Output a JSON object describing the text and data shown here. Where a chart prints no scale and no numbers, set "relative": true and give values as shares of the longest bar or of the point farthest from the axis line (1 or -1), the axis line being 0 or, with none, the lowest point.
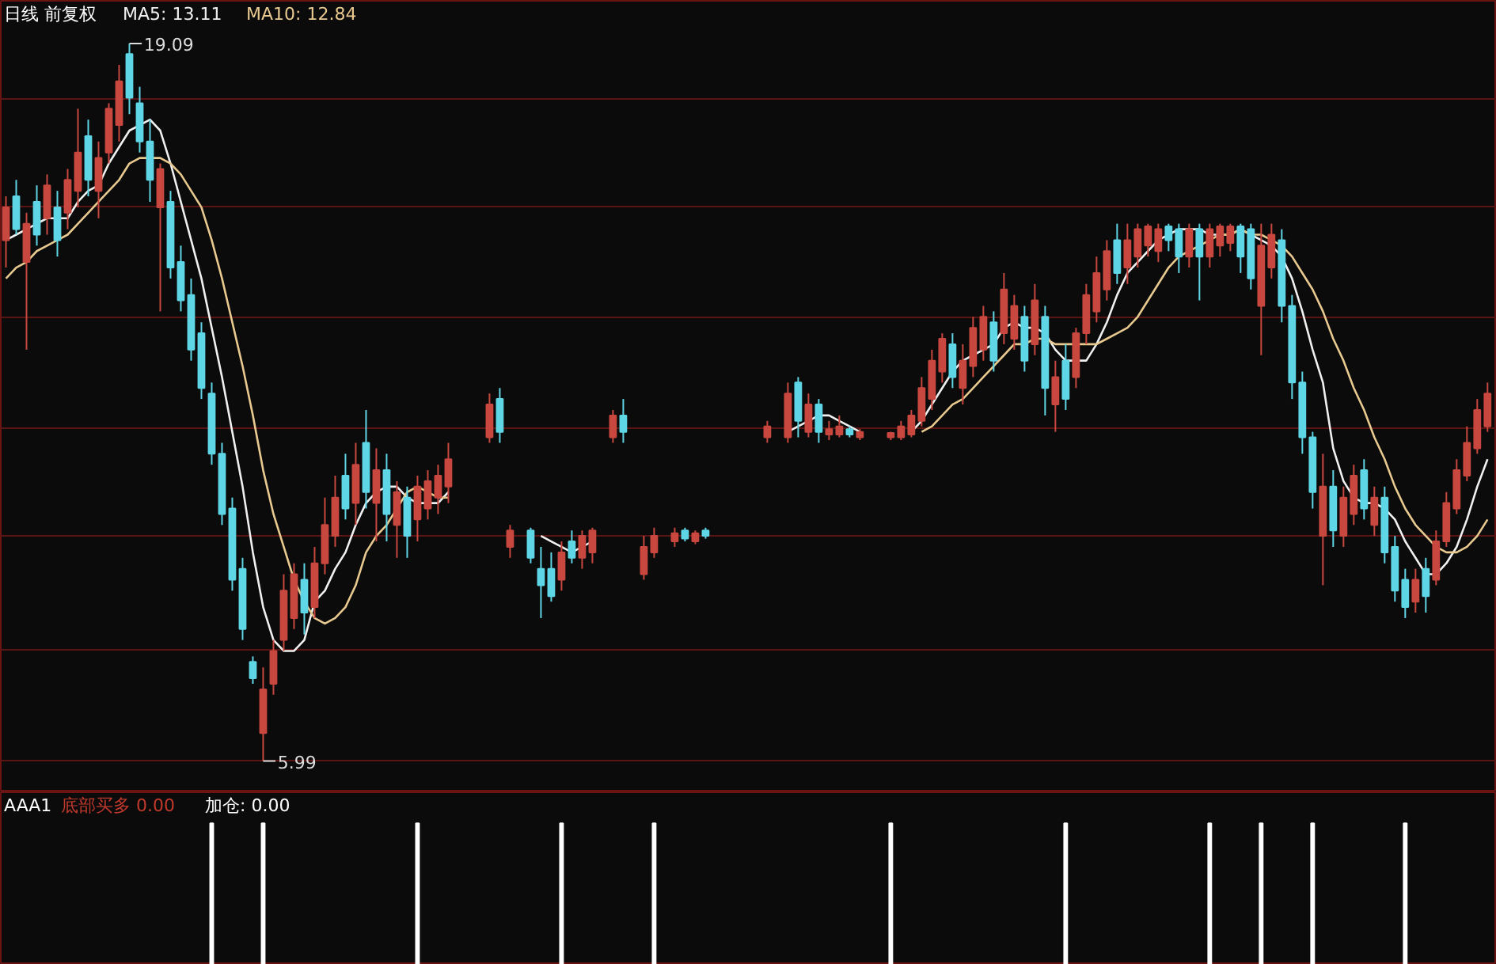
{
  "chart_data": [
    {
      "type": "candlestick",
      "title": "日线 前复权",
      "categories": [
        null,
        null,
        null,
        null,
        null,
        null,
        null,
        null,
        null,
        null,
        null,
        null,
        null,
        null,
        null,
        null,
        null,
        null,
        null,
        null,
        null,
        null,
        null,
        null,
        null,
        null,
        null,
        null,
        null,
        null,
        null,
        null,
        null,
        null,
        null,
        null,
        null,
        null,
        null,
        null,
        null,
        null,
        null,
        null,
        null,
        null,
        null,
        null,
        null,
        null,
        null,
        null,
        null,
        null,
        null,
        null,
        null,
        null,
        null,
        null,
        null,
        null,
        null,
        null,
        null,
        null,
        null,
        null,
        null,
        null,
        null,
        null,
        null,
        null,
        null,
        null,
        null,
        null,
        null,
        null,
        null,
        null,
        null,
        null,
        null,
        null,
        null,
        null,
        null,
        null,
        null,
        null,
        null,
        null,
        null,
        null,
        null,
        null,
        null,
        null,
        null,
        null,
        null,
        null,
        null,
        null,
        null,
        null,
        null,
        null,
        null,
        null,
        null,
        null,
        null,
        null,
        null,
        null,
        null,
        null,
        null,
        null,
        null,
        null,
        null,
        null,
        null,
        null,
        null,
        null,
        null,
        null,
        null,
        null,
        null,
        null,
        null,
        null,
        null,
        null,
        null,
        null,
        null,
        null,
        null
      ],
      "ohlc": [
        [
          15.5,
          16.3,
          15.0,
          16.1
        ],
        [
          16.3,
          16.6,
          15.6,
          15.7
        ],
        [
          15.1,
          16.0,
          13.5,
          15.8
        ],
        [
          16.2,
          16.5,
          15.4,
          15.6
        ],
        [
          15.9,
          16.7,
          15.6,
          16.5
        ],
        [
          16.1,
          16.4,
          15.2,
          15.5
        ],
        [
          16.0,
          16.8,
          15.7,
          16.6
        ],
        [
          16.4,
          17.9,
          16.1,
          17.1
        ],
        [
          17.4,
          17.7,
          16.3,
          16.6
        ],
        [
          16.4,
          17.3,
          15.9,
          17.0
        ],
        [
          17.1,
          18.0,
          16.9,
          17.9
        ],
        [
          17.6,
          18.7,
          17.3,
          18.4
        ],
        [
          18.9,
          19.09,
          17.8,
          18.1
        ],
        [
          18.0,
          18.3,
          17.1,
          17.3
        ],
        [
          17.3,
          17.7,
          16.2,
          16.6
        ],
        [
          16.1,
          16.9,
          14.2,
          16.8
        ],
        [
          16.2,
          16.4,
          14.8,
          15.0
        ],
        [
          15.1,
          15.4,
          14.2,
          14.4
        ],
        [
          14.5,
          14.8,
          13.3,
          13.5
        ],
        [
          13.8,
          14.0,
          12.6,
          12.8
        ],
        [
          12.7,
          12.9,
          11.4,
          11.6
        ],
        [
          11.6,
          11.8,
          10.3,
          10.5
        ],
        [
          10.6,
          10.8,
          9.1,
          9.3
        ],
        [
          9.5,
          9.7,
          8.2,
          8.4
        ],
        [
          7.8,
          7.9,
          7.4,
          7.5
        ],
        [
          6.5,
          7.7,
          5.99,
          7.3
        ],
        [
          7.4,
          8.2,
          7.2,
          8.0
        ],
        [
          8.2,
          9.4,
          8.0,
          9.1
        ],
        [
          8.6,
          9.6,
          8.4,
          9.4
        ],
        [
          9.3,
          9.6,
          8.3,
          8.7
        ],
        [
          8.8,
          9.9,
          8.6,
          9.6
        ],
        [
          9.6,
          10.8,
          9.4,
          10.3
        ],
        [
          10.1,
          11.2,
          9.9,
          10.8
        ],
        [
          11.2,
          11.6,
          10.4,
          10.6
        ],
        [
          10.7,
          11.8,
          10.3,
          11.4
        ],
        [
          11.8,
          12.4,
          10.6,
          10.9
        ],
        [
          10.7,
          11.7,
          10.0,
          11.3
        ],
        [
          11.3,
          11.6,
          10.0,
          10.5
        ],
        [
          10.3,
          11.1,
          9.7,
          10.9
        ],
        [
          10.8,
          11.0,
          9.7,
          10.1
        ],
        [
          10.4,
          11.2,
          10.0,
          11.0
        ],
        [
          10.6,
          11.3,
          10.4,
          11.1
        ],
        [
          10.8,
          11.4,
          10.5,
          11.2
        ],
        [
          11.0,
          11.8,
          10.7,
          11.5
        ],
        null,
        null,
        null,
        [
          11.9,
          12.7,
          11.8,
          12.5
        ],
        [
          12.6,
          12.8,
          11.8,
          12.0
        ],
        [
          9.9,
          10.3,
          9.7,
          10.2
        ],
        null,
        [
          10.2,
          10.25,
          9.6,
          9.7
        ],
        [
          9.5,
          9.9,
          8.6,
          9.2
        ],
        [
          9.5,
          9.8,
          8.9,
          9.0
        ],
        [
          9.3,
          10.0,
          9.1,
          9.8
        ],
        [
          10.0,
          10.2,
          9.6,
          9.7
        ],
        [
          9.7,
          10.2,
          9.5,
          10.1
        ],
        [
          9.8,
          10.25,
          9.6,
          10.2
        ],
        null,
        [
          11.9,
          12.4,
          11.8,
          12.3
        ],
        [
          12.3,
          12.6,
          11.8,
          12.0
        ],
        null,
        [
          9.4,
          10.1,
          9.3,
          9.9
        ],
        [
          9.8,
          10.25,
          9.7,
          10.1
        ],
        null,
        [
          10.0,
          10.25,
          9.9,
          10.15
        ],
        [
          10.2,
          10.25,
          10.0,
          10.05
        ],
        [
          10.0,
          10.2,
          9.95,
          10.15
        ],
        [
          10.2,
          10.25,
          10.05,
          10.1
        ],
        null,
        null,
        null,
        null,
        null,
        [
          11.9,
          12.2,
          11.8,
          12.1
        ],
        null,
        [
          11.9,
          12.9,
          11.8,
          12.7
        ],
        [
          12.9,
          13.0,
          11.9,
          12.2
        ],
        [
          12.0,
          12.7,
          11.9,
          12.5
        ],
        [
          12.5,
          12.6,
          11.8,
          12.0
        ],
        [
          11.95,
          12.2,
          11.85,
          12.05
        ],
        [
          11.95,
          12.3,
          11.9,
          12.1
        ],
        [
          12.05,
          12.1,
          11.9,
          11.95
        ],
        [
          11.9,
          12.05,
          11.85,
          12.0
        ],
        null,
        null,
        [
          11.9,
          12.0,
          11.85,
          11.98
        ],
        [
          11.9,
          12.2,
          11.85,
          12.1
        ],
        [
          11.95,
          12.4,
          11.9,
          12.3
        ],
        [
          12.2,
          13.0,
          12.1,
          12.8
        ],
        [
          12.6,
          13.5,
          12.4,
          13.3
        ],
        [
          13.1,
          13.8,
          12.9,
          13.7
        ],
        [
          13.6,
          13.8,
          12.8,
          13.0
        ],
        [
          12.8,
          13.6,
          12.5,
          13.3
        ],
        [
          13.2,
          14.1,
          13.0,
          13.9
        ],
        [
          13.5,
          14.3,
          13.3,
          14.1
        ],
        [
          14.0,
          14.2,
          13.1,
          13.3
        ],
        [
          13.8,
          14.9,
          13.6,
          14.6
        ],
        [
          13.7,
          14.5,
          13.5,
          14.3
        ],
        [
          14.1,
          14.3,
          13.1,
          13.3
        ],
        [
          13.6,
          14.7,
          13.4,
          14.4
        ],
        [
          14.1,
          14.3,
          12.3,
          12.8
        ],
        [
          12.5,
          13.3,
          12.0,
          13.0
        ],
        [
          13.3,
          13.6,
          12.4,
          12.6
        ],
        [
          13.0,
          13.9,
          12.8,
          13.8
        ],
        [
          13.8,
          14.7,
          13.6,
          14.5
        ],
        [
          14.2,
          15.2,
          14.0,
          14.9
        ],
        [
          14.6,
          15.5,
          14.4,
          15.3
        ],
        [
          15.5,
          15.8,
          14.7,
          14.9
        ],
        [
          15.0,
          15.8,
          14.7,
          15.5
        ],
        [
          15.2,
          15.8,
          15.0,
          15.7
        ],
        [
          15.4,
          15.8,
          15.2,
          15.75
        ],
        [
          15.3,
          15.8,
          15.1,
          15.7
        ],
        [
          15.75,
          15.8,
          15.3,
          15.5
        ],
        [
          15.7,
          15.8,
          14.9,
          15.2
        ],
        [
          15.2,
          15.8,
          15.0,
          15.7
        ],
        [
          15.7,
          15.8,
          14.4,
          15.2
        ],
        [
          15.2,
          15.8,
          15.0,
          15.7
        ],
        [
          15.4,
          15.8,
          15.2,
          15.75
        ],
        [
          15.45,
          15.8,
          15.3,
          15.75
        ],
        [
          15.75,
          15.8,
          14.9,
          15.2
        ],
        [
          15.7,
          15.8,
          14.6,
          14.8
        ],
        [
          14.3,
          15.8,
          13.4,
          15.4
        ],
        [
          15.0,
          15.8,
          14.8,
          15.6
        ],
        [
          15.5,
          15.7,
          14.0,
          14.3
        ],
        [
          14.3,
          14.5,
          12.6,
          12.9
        ],
        [
          12.9,
          13.1,
          11.6,
          11.9
        ],
        [
          11.9,
          12.0,
          10.6,
          10.9
        ],
        [
          10.1,
          11.6,
          9.2,
          11.0
        ],
        [
          11.0,
          11.3,
          9.9,
          10.2
        ],
        [
          10.1,
          11.0,
          9.9,
          10.8
        ],
        [
          10.5,
          11.4,
          10.3,
          11.2
        ],
        [
          11.3,
          11.5,
          10.4,
          10.6
        ],
        [
          10.3,
          11.0,
          10.1,
          10.8
        ],
        [
          10.8,
          11.0,
          9.6,
          9.8
        ],
        [
          9.9,
          10.1,
          8.9,
          9.1
        ],
        [
          9.3,
          9.5,
          8.6,
          8.8
        ],
        [
          8.9,
          9.5,
          8.7,
          9.3
        ],
        [
          9.5,
          9.7,
          8.7,
          9.0
        ],
        [
          9.3,
          10.2,
          9.2,
          10.0
        ],
        [
          10.0,
          10.9,
          9.9,
          10.7
        ],
        [
          10.6,
          11.5,
          10.5,
          11.3
        ],
        [
          11.2,
          12.1,
          11.1,
          11.8
        ],
        [
          11.7,
          12.6,
          11.6,
          12.4
        ],
        [
          12.1,
          12.9,
          12.0,
          12.7
        ]
      ],
      "series": [
        {
          "name": "MA5: 13.11",
          "type": "line",
          "color": "#f0f0f0",
          "values": [
            15.5,
            15.6,
            15.7,
            15.8,
            15.9,
            15.9,
            15.9,
            16.2,
            16.4,
            16.5,
            16.9,
            17.2,
            17.5,
            17.6,
            17.7,
            17.5,
            16.9,
            16.2,
            15.5,
            14.8,
            13.9,
            13.0,
            12.0,
            11.0,
            9.8,
            8.8,
            8.2,
            8.0,
            8.0,
            8.2,
            8.9,
            9.1,
            9.5,
            9.8,
            10.3,
            10.7,
            10.9,
            11.0,
            11.0,
            10.8,
            10.7,
            10.7,
            10.7,
            10.9,
            null,
            null,
            null,
            null,
            null,
            null,
            null,
            null,
            10.1,
            10.0,
            9.9,
            9.8,
            9.9,
            10.0,
            null,
            null,
            null,
            null,
            null,
            null,
            null,
            null,
            null,
            null,
            null,
            null,
            null,
            null,
            null,
            null,
            null,
            null,
            12.0,
            12.1,
            12.2,
            12.3,
            12.3,
            12.2,
            12.1,
            12.0,
            null,
            null,
            null,
            null,
            12.0,
            12.2,
            12.5,
            12.8,
            13.1,
            13.3,
            13.4,
            13.5,
            13.6,
            13.9,
            14.0,
            13.9,
            13.9,
            13.8,
            13.5,
            13.3,
            13.3,
            13.3,
            13.6,
            14.0,
            14.5,
            14.9,
            15.1,
            15.3,
            15.5,
            15.6,
            15.7,
            15.7,
            15.7,
            15.6,
            15.6,
            15.6,
            15.7,
            15.6,
            15.5,
            15.4,
            15.2,
            14.8,
            14.2,
            13.5,
            12.9,
            11.7,
            11.1,
            10.8,
            10.7,
            10.7,
            10.6,
            10.4,
            10.0,
            9.7,
            9.4,
            9.4,
            9.6,
            9.9,
            10.4,
            11.0,
            11.5
          ]
        },
        {
          "name": "MA10: 12.84",
          "type": "line",
          "color": "#e8c98f",
          "values": [
            14.8,
            15.0,
            15.1,
            15.3,
            15.4,
            15.5,
            15.6,
            15.8,
            16.0,
            16.2,
            16.4,
            16.6,
            16.9,
            17.0,
            17.0,
            17.0,
            16.9,
            16.7,
            16.4,
            16.1,
            15.5,
            14.8,
            14.0,
            13.2,
            12.3,
            11.3,
            10.5,
            9.9,
            9.3,
            8.9,
            8.6,
            8.5,
            8.6,
            8.8,
            9.2,
            9.8,
            10.1,
            10.3,
            10.6,
            10.9,
            11.0,
            10.9,
            10.8,
            10.8,
            null,
            null,
            null,
            null,
            null,
            null,
            null,
            null,
            null,
            null,
            null,
            null,
            null,
            null,
            null,
            null,
            null,
            null,
            null,
            null,
            null,
            null,
            null,
            null,
            null,
            null,
            null,
            null,
            null,
            null,
            null,
            null,
            null,
            null,
            null,
            null,
            null,
            null,
            null,
            null,
            null,
            null,
            null,
            null,
            null,
            12.0,
            12.1,
            12.3,
            12.5,
            12.6,
            12.8,
            13.0,
            13.2,
            13.4,
            13.6,
            13.6,
            13.7,
            13.7,
            13.6,
            13.6,
            13.6,
            13.6,
            13.6,
            13.7,
            13.8,
            13.9,
            14.1,
            14.4,
            14.7,
            15.0,
            15.2,
            15.3,
            15.4,
            15.5,
            15.6,
            15.6,
            15.7,
            15.6,
            15.6,
            15.5,
            15.4,
            15.2,
            14.9,
            14.6,
            14.2,
            13.7,
            13.3,
            12.8,
            12.4,
            11.9,
            11.5,
            11.0,
            10.6,
            10.3,
            10.1,
            9.9,
            9.8,
            9.8,
            9.9,
            10.1,
            10.4
          ]
        }
      ],
      "annotations": [
        "19.09",
        "5.99"
      ],
      "ylim": [
        5.42,
        19.87
      ],
      "yticks": [
        {
          "value": 18.08,
          "label": null
        },
        {
          "value": 16.1,
          "label": null
        },
        {
          "value": 14.09,
          "label": null
        },
        {
          "value": 12.07,
          "label": null
        },
        {
          "value": 10.1,
          "label": null
        },
        {
          "value": 8.02,
          "label": null
        },
        {
          "value": 6.0,
          "label": null
        }
      ],
      "grid": "y",
      "legend": "top left",
      "tick_labels": false
    },
    {
      "type": "bar",
      "title": "AAA1",
      "relative": true,
      "categories": [
        null,
        null,
        null,
        null,
        null,
        null,
        null,
        null,
        null,
        null,
        null,
        null,
        null,
        null,
        null,
        null,
        null,
        null,
        null,
        null,
        null,
        null,
        null,
        null,
        null,
        null,
        null,
        null,
        null,
        null,
        null,
        null,
        null,
        null,
        null,
        null,
        null,
        null,
        null,
        null,
        null,
        null,
        null,
        null,
        null,
        null,
        null,
        null,
        null,
        null,
        null,
        null,
        null,
        null,
        null,
        null,
        null,
        null,
        null,
        null,
        null,
        null,
        null,
        null,
        null,
        null,
        null,
        null,
        null,
        null,
        null,
        null,
        null,
        null,
        null,
        null,
        null,
        null,
        null,
        null,
        null,
        null,
        null,
        null,
        null,
        null,
        null,
        null,
        null,
        null,
        null,
        null,
        null,
        null,
        null,
        null,
        null,
        null,
        null,
        null,
        null,
        null,
        null,
        null,
        null,
        null,
        null,
        null,
        null,
        null,
        null,
        null,
        null,
        null,
        null,
        null,
        null,
        null,
        null,
        null,
        null,
        null,
        null,
        null,
        null,
        null,
        null,
        null,
        null,
        null,
        null,
        null,
        null,
        null,
        null,
        null,
        null,
        null,
        null,
        null,
        null,
        null,
        null,
        null,
        null
      ],
      "series": [
        {
          "name": "加仓: 0.00",
          "color": "#ffffff",
          "values": [
            null,
            null,
            null,
            null,
            null,
            null,
            null,
            null,
            null,
            null,
            null,
            null,
            null,
            null,
            null,
            null,
            null,
            null,
            null,
            null,
            1,
            null,
            null,
            null,
            null,
            1,
            null,
            null,
            null,
            null,
            null,
            null,
            null,
            null,
            null,
            null,
            null,
            null,
            null,
            null,
            1,
            null,
            null,
            null,
            null,
            null,
            null,
            null,
            null,
            null,
            null,
            null,
            null,
            null,
            1,
            null,
            null,
            null,
            null,
            null,
            null,
            null,
            null,
            1,
            null,
            null,
            null,
            null,
            null,
            null,
            null,
            null,
            null,
            null,
            null,
            null,
            null,
            null,
            null,
            null,
            null,
            null,
            null,
            null,
            null,
            null,
            1,
            null,
            null,
            null,
            null,
            null,
            null,
            null,
            null,
            null,
            null,
            null,
            null,
            null,
            null,
            null,
            null,
            1,
            null,
            null,
            null,
            null,
            null,
            null,
            null,
            null,
            null,
            null,
            null,
            null,
            null,
            1,
            null,
            null,
            null,
            null,
            1,
            null,
            null,
            null,
            null,
            1,
            null,
            null,
            null,
            null,
            null,
            null,
            null,
            null,
            1,
            null,
            null,
            null,
            null,
            null,
            null,
            null,
            null
          ]
        }
      ],
      "annotations": [
        "底部买多 0.00"
      ],
      "legend": "top left",
      "tick_labels": false
    }
  ]
}
